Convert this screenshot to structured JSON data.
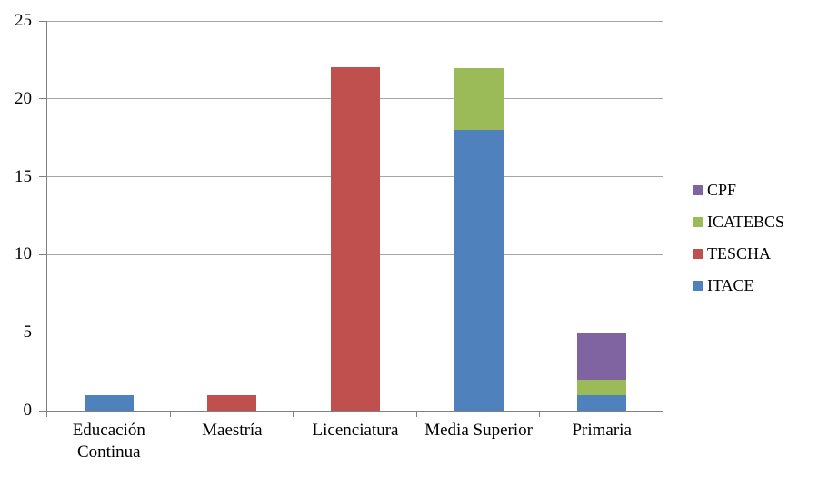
{
  "chart_data": {
    "type": "bar",
    "stacked": true,
    "title": "",
    "xlabel": "",
    "ylabel": "",
    "ylim": [
      0,
      25
    ],
    "yticks": [
      0,
      5,
      10,
      15,
      20,
      25
    ],
    "grid": "horizontal-major",
    "grid_color": "#A6A6A6",
    "axis_color": "#808080",
    "background_color": "#FFFFFF",
    "legend_position": "right",
    "categories": [
      "Educación Continua",
      "Maestría",
      "Licenciatura",
      "Media Superior",
      "Primaria"
    ],
    "series": [
      {
        "name": "ITACE",
        "color": "#4F81BD",
        "values": [
          1,
          0,
          0,
          18,
          1
        ]
      },
      {
        "name": "TESCHA",
        "color": "#C0504D",
        "values": [
          0,
          1,
          22,
          0,
          0
        ]
      },
      {
        "name": "ICATEBCS",
        "color": "#9BBB59",
        "values": [
          0,
          0,
          0,
          4,
          1
        ]
      },
      {
        "name": "CPF",
        "color": "#8064A2",
        "values": [
          0,
          0,
          0,
          0,
          3
        ]
      }
    ],
    "category_totals": [
      1,
      1,
      22,
      22,
      5
    ],
    "legend": [
      "CPF",
      "ICATEBCS",
      "TESCHA",
      "ITACE"
    ]
  }
}
